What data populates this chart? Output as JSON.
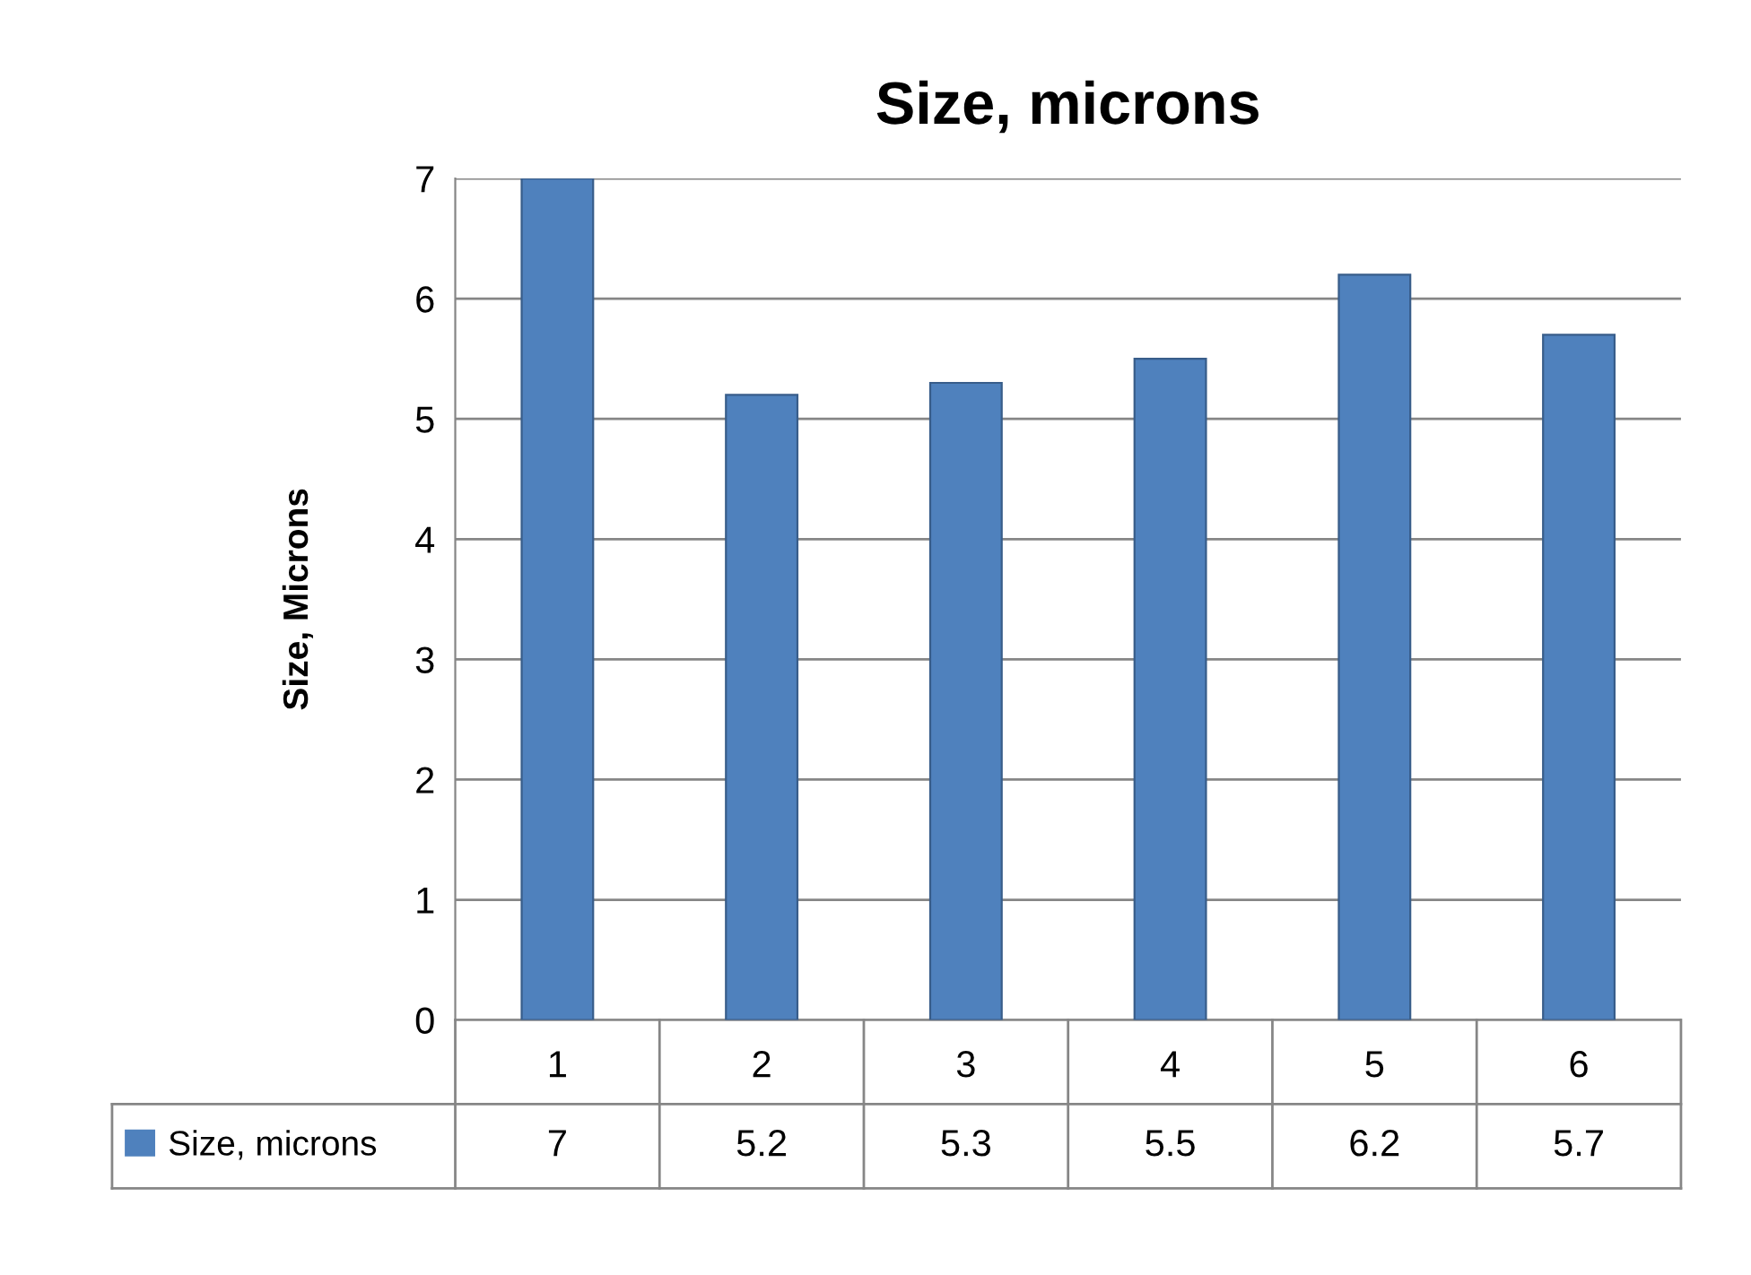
{
  "chart_data": {
    "type": "bar",
    "title": "Size, microns",
    "ylabel": "Size, Microns",
    "categories": [
      "1",
      "2",
      "3",
      "4",
      "5",
      "6"
    ],
    "series": [
      {
        "name": "Size, microns",
        "color": "#4f81bd",
        "values": [
          7,
          5.2,
          5.3,
          5.5,
          6.2,
          5.7
        ]
      }
    ],
    "ylim": [
      0,
      7
    ],
    "yticks": [
      0,
      1,
      2,
      3,
      4,
      5,
      6,
      7
    ],
    "grid": "y",
    "data_labels": true,
    "legend": "bottom"
  }
}
